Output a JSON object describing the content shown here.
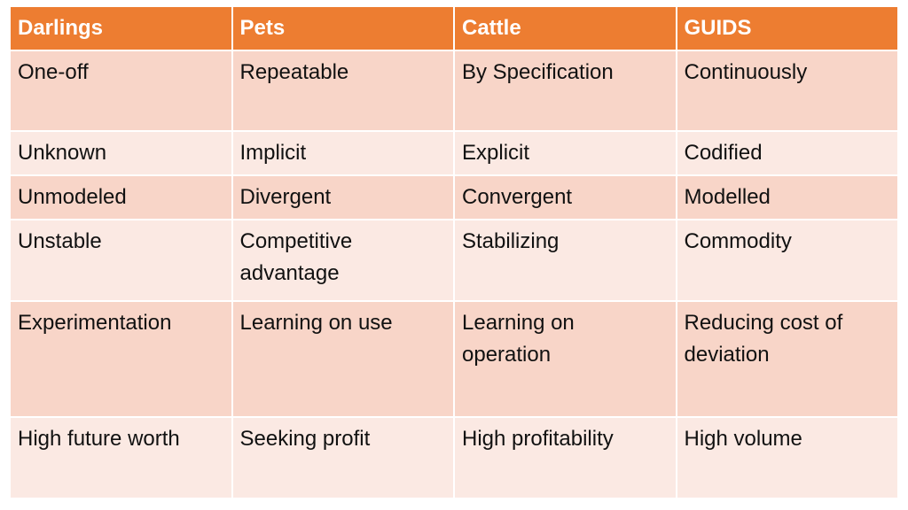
{
  "table": {
    "header": [
      "Darlings",
      "Pets",
      "Cattle",
      "GUIDS"
    ],
    "rows": [
      [
        "One-off",
        "Repeatable",
        "By Specification",
        "Continuously"
      ],
      [
        "Unknown",
        "Implicit",
        "Explicit",
        "Codified"
      ],
      [
        "Unmodeled",
        "Divergent",
        "Convergent",
        "Modelled"
      ],
      [
        "Unstable",
        "Competitive advantage",
        "Stabilizing",
        "Commodity"
      ],
      [
        "Experimentation",
        "Learning on use",
        "Learning on operation",
        "Reducing cost of deviation"
      ],
      [
        "High future worth",
        "Seeking profit",
        "High profitability",
        "High volume"
      ]
    ]
  }
}
